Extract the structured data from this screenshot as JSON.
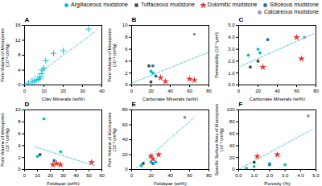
{
  "chart_data": [
    {
      "type": "scatter",
      "title": "A",
      "xlabel": "Clay Minerals (wt%)",
      "ylabel": "Pore Volume of Mesopores\n(10⁻³ cm³/g)",
      "xlim": [
        0,
        40
      ],
      "ylim": [
        0,
        16
      ],
      "xticks": [
        0,
        10,
        20,
        30,
        40
      ],
      "yticks": [
        0,
        4,
        8,
        12,
        16
      ],
      "grid": false,
      "series": [
        {
          "color": "#00bcd4",
          "marker": "plus",
          "x": [
            2,
            4,
            5,
            6,
            7,
            8,
            8,
            9,
            9,
            10,
            11,
            15,
            20,
            33
          ],
          "values": [
            0.5,
            0.8,
            1.0,
            1.2,
            1.5,
            1.8,
            2.2,
            3.0,
            4.0,
            4.5,
            6.5,
            8.5,
            9.2,
            15.0
          ]
        },
        {
          "type": "line",
          "line_style": "dashed",
          "color": "#56c8d8",
          "x": [
            0,
            37
          ],
          "values": [
            0.3,
            14.5
          ]
        }
      ]
    },
    {
      "type": "scatter",
      "title": "B",
      "xlabel": "Carbonate Minerals (wt%)",
      "ylabel": "Pore Volume of Mesopores\n(10⁻³ cm³/g)",
      "xlim": [
        0,
        80
      ],
      "ylim": [
        0,
        10
      ],
      "xticks": [
        0,
        20,
        40,
        60,
        80
      ],
      "yticks": [
        0,
        2,
        4,
        6,
        8,
        10
      ],
      "grid": false,
      "legend": "upper right",
      "series": [
        {
          "name": "Argillaceous mudstone",
          "color": "#00bcd4",
          "marker": "circle",
          "x": [
            20,
            22
          ],
          "values": [
            2.3,
            2.0
          ]
        },
        {
          "name": "Tuffaceous mudstone",
          "color": "#444444",
          "marker": "square",
          "x": [
            18,
            20
          ],
          "values": [
            3.2,
            0.5
          ]
        },
        {
          "name": "Dolomitic mudstone",
          "color": "#e53935",
          "marker": "star",
          "x": [
            30,
            35,
            60,
            65
          ],
          "values": [
            1.2,
            0.6,
            1.0,
            0.8
          ]
        },
        {
          "name": "Siliceous mudstone",
          "color": "#1a6fba",
          "marker": "circle",
          "x": [
            22,
            25
          ],
          "values": [
            3.2,
            1.5
          ]
        },
        {
          "name": "Calcareous mudstone",
          "color": "#9090d0",
          "marker": "circle",
          "x": [
            65
          ],
          "values": [
            8.5
          ]
        },
        {
          "type": "line",
          "line_style": "dashed",
          "color": "#56c8d8",
          "x": [
            0,
            80
          ],
          "values": [
            0.3,
            5.5
          ]
        }
      ]
    },
    {
      "type": "scatter",
      "title": "C",
      "xlabel": "Carbonate Minerals (wt%)",
      "ylabel": "Permeability (10⁻³ μm²)",
      "xlim": [
        0,
        80
      ],
      "ylim": [
        0,
        5
      ],
      "xticks": [
        0,
        20,
        40,
        60,
        80
      ],
      "yticks": [
        0,
        1,
        2,
        3,
        4,
        5
      ],
      "grid": false,
      "series": [
        {
          "color": "#00bcd4",
          "marker": "circle",
          "x": [
            10,
            20,
            22
          ],
          "values": [
            2.5,
            3.0,
            2.7
          ]
        },
        {
          "color": "#444444",
          "marker": "square",
          "x": [
            12,
            20
          ],
          "values": [
            1.5,
            2.0
          ]
        },
        {
          "color": "#e53935",
          "marker": "star",
          "x": [
            25,
            60,
            65
          ],
          "values": [
            1.5,
            4.0,
            2.2
          ]
        },
        {
          "color": "#1a6fba",
          "marker": "circle",
          "x": [
            30
          ],
          "values": [
            3.8
          ]
        },
        {
          "color": "#9090d0",
          "marker": "circle",
          "x": [
            68
          ],
          "values": [
            4.0
          ]
        },
        {
          "type": "line",
          "line_style": "dashed",
          "color": "#56c8d8",
          "x": [
            0,
            78
          ],
          "values": [
            1.5,
            4.3
          ]
        }
      ]
    },
    {
      "type": "scatter",
      "title": "D",
      "xlabel": "Feldspar (wt%)",
      "ylabel": "Pore Volume of Mesopores\n(10⁻³ cm³/g)",
      "xlim": [
        0,
        60
      ],
      "ylim": [
        0,
        10
      ],
      "xticks": [
        0,
        10,
        20,
        30,
        40,
        50,
        60
      ],
      "yticks": [
        0,
        2,
        4,
        6,
        8,
        10
      ],
      "grid": false,
      "series": [
        {
          "color": "#00bcd4",
          "marker": "circle",
          "x": [
            10,
            15,
            28
          ],
          "values": [
            2.2,
            8.5,
            3.0
          ]
        },
        {
          "color": "#444444",
          "marker": "square",
          "x": [
            12
          ],
          "values": [
            2.5
          ]
        },
        {
          "color": "#e53935",
          "marker": "star",
          "x": [
            22,
            25,
            28,
            52
          ],
          "values": [
            0.8,
            1.0,
            0.8,
            1.2
          ]
        },
        {
          "color": "#1a6fba",
          "marker": "circle",
          "x": [
            23
          ],
          "values": [
            1.5
          ]
        },
        {
          "type": "line",
          "line_style": "dashed",
          "color": "#56c8d8",
          "x": [
            8,
            55
          ],
          "values": [
            3.8,
            0.6
          ]
        }
      ]
    },
    {
      "type": "scatter",
      "title": "E",
      "xlabel": "Feldspar (wt%)",
      "ylabel": "Pore Volume of Macropores\n(10⁻³ cm³/g)",
      "xlim": [
        0,
        80
      ],
      "ylim": [
        0,
        80
      ],
      "xticks": [
        0,
        20,
        40,
        60,
        80
      ],
      "yticks": [
        0,
        20,
        40,
        60,
        80
      ],
      "grid": false,
      "series": [
        {
          "color": "#00bcd4",
          "marker": "circle",
          "x": [
            10,
            20,
            22,
            25
          ],
          "values": [
            5,
            10,
            8,
            10
          ]
        },
        {
          "color": "#444444",
          "marker": "square",
          "x": [
            12
          ],
          "values": [
            8
          ]
        },
        {
          "color": "#e53935",
          "marker": "star",
          "x": [
            20,
            22,
            28
          ],
          "values": [
            18,
            14,
            20
          ]
        },
        {
          "color": "#1a6fba",
          "marker": "circle",
          "x": [
            22
          ],
          "values": [
            8
          ]
        },
        {
          "color": "#9090d0",
          "marker": "circle",
          "x": [
            55
          ],
          "values": [
            70
          ]
        },
        {
          "type": "line",
          "line_style": "dashed",
          "color": "#56c8d8",
          "x": [
            5,
            65
          ],
          "values": [
            2,
            70
          ]
        }
      ]
    },
    {
      "type": "scatter",
      "title": "F",
      "xlabel": "Porosity (%)",
      "ylabel": "Specific Surface Area of Macropores\n(10⁻³ cm³/g)",
      "xlim": [
        0,
        5
      ],
      "ylim": [
        0,
        100
      ],
      "xticks": [
        0,
        1,
        2,
        3,
        4,
        5
      ],
      "yticks": [
        0,
        20,
        40,
        60,
        80,
        100
      ],
      "grid": false,
      "series": [
        {
          "color": "#00bcd4",
          "marker": "circle",
          "x": [
            0.5,
            1.0,
            2.0,
            3.0
          ],
          "values": [
            2,
            5,
            10,
            8
          ]
        },
        {
          "color": "#444444",
          "marker": "square",
          "x": [
            1.0
          ],
          "values": [
            12
          ]
        },
        {
          "color": "#e53935",
          "marker": "star",
          "x": [
            1.2,
            2.5
          ],
          "values": [
            22,
            25
          ]
        },
        {
          "color": "#1a6fba",
          "marker": "circle",
          "x": [
            2.0
          ],
          "values": [
            8
          ]
        },
        {
          "color": "#9090d0",
          "marker": "circle",
          "x": [
            4.5
          ],
          "values": [
            90
          ]
        },
        {
          "type": "line",
          "line_style": "dashed",
          "color": "#56c8d8",
          "x": [
            0,
            4.8
          ],
          "values": [
            0,
            68
          ]
        }
      ]
    }
  ]
}
